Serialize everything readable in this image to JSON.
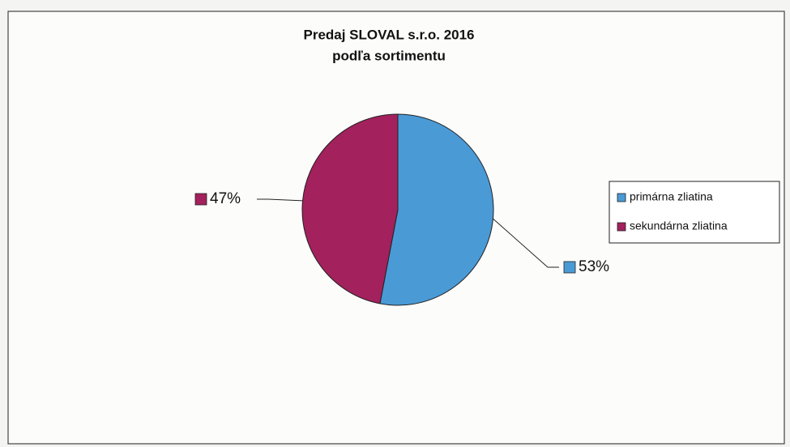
{
  "chart_data": {
    "type": "pie",
    "title": "Predaj SLOVAL s.r.o. 2016",
    "subtitle": "podľa sortimentu",
    "series": [
      {
        "name": "primárna zliatina",
        "color": "#4a9ad6"
      },
      {
        "name": "sekundárna zliatina",
        "color": "#a3215c"
      }
    ],
    "values": [
      53,
      47
    ],
    "value_labels": [
      "53%",
      "47%"
    ],
    "legend": "right"
  }
}
